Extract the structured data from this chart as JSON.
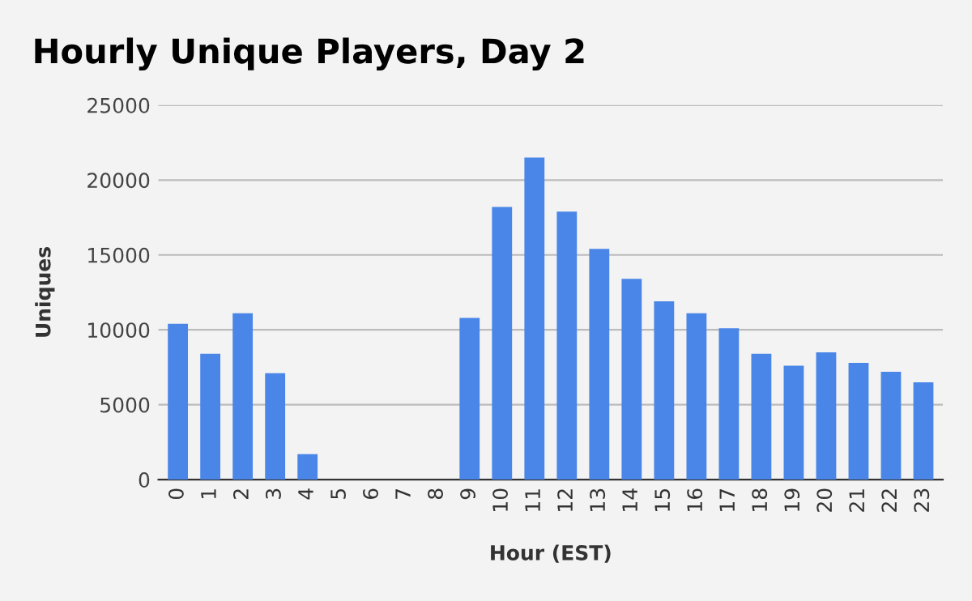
{
  "chart_data": {
    "type": "bar",
    "title": "Hourly Unique Players, Day 2",
    "xlabel": "Hour (EST)",
    "ylabel": "Uniques",
    "categories": [
      "0",
      "1",
      "2",
      "3",
      "4",
      "5",
      "6",
      "7",
      "8",
      "9",
      "10",
      "11",
      "12",
      "13",
      "14",
      "15",
      "16",
      "17",
      "18",
      "19",
      "20",
      "21",
      "22",
      "23"
    ],
    "series": [
      {
        "color": "#4a86e8",
        "values": [
          10400,
          8400,
          11100,
          7100,
          1700,
          0,
          0,
          0,
          0,
          10800,
          18200,
          21500,
          17900,
          15400,
          13400,
          11900,
          11100,
          10100,
          8400,
          7600,
          8500,
          7800,
          7200,
          6500
        ]
      }
    ],
    "ylim": [
      0,
      25000
    ],
    "yticks": [
      0,
      5000,
      10000,
      15000,
      20000,
      25000
    ],
    "grid": "y",
    "legend": false
  }
}
